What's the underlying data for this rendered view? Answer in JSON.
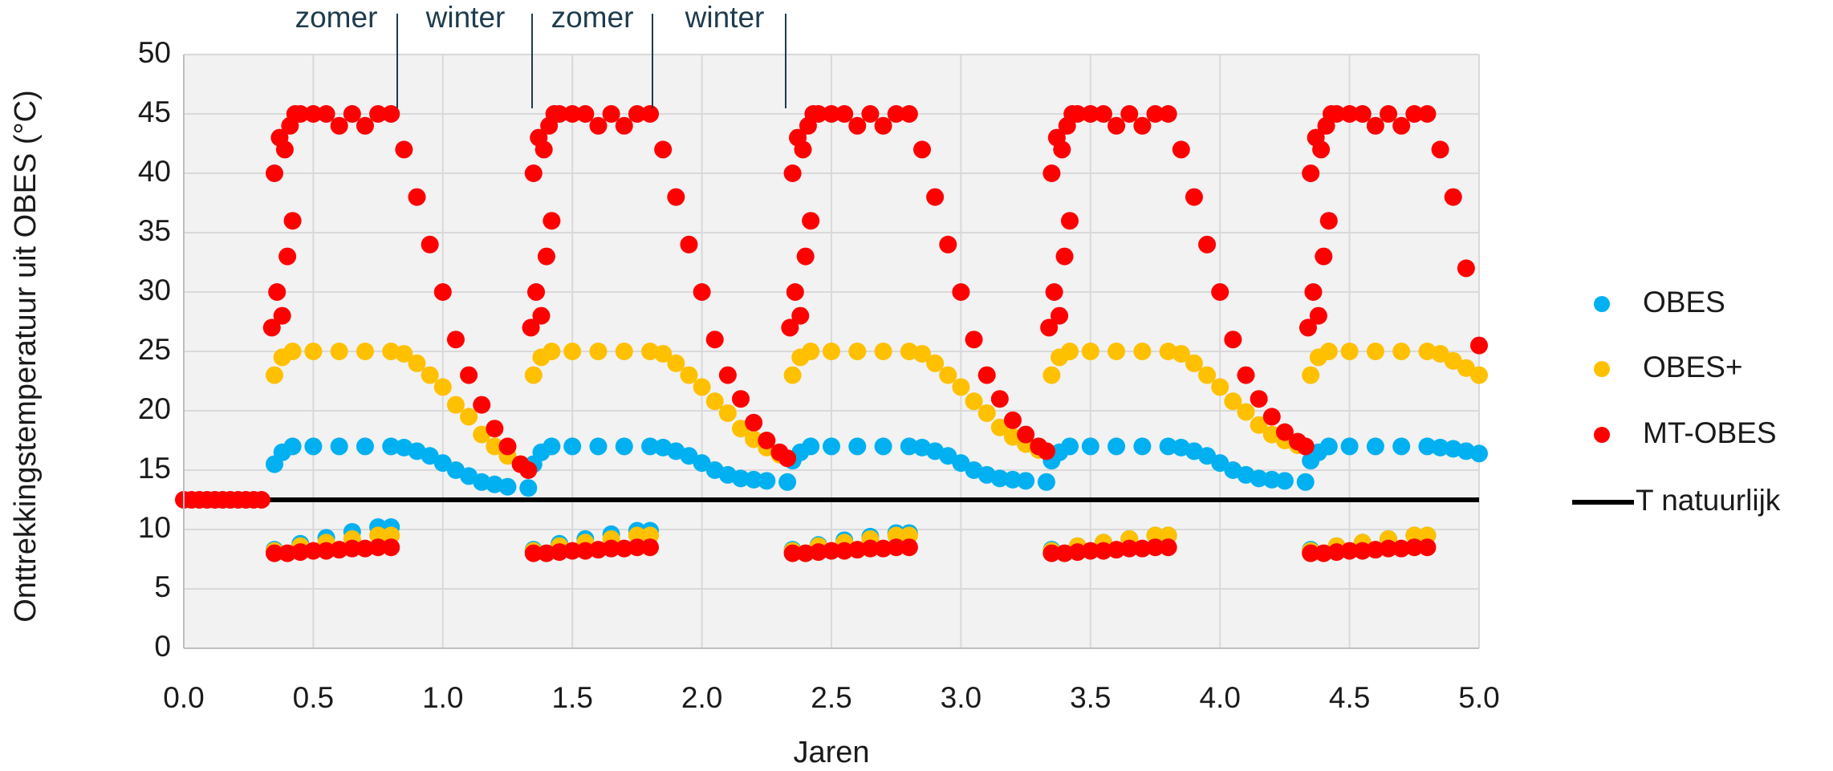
{
  "chart_data": {
    "type": "scatter",
    "xlabel": "Jaren",
    "ylabel": "Onttrekkingstemperatuur uit OBES (°C)",
    "annotations": [
      "zomer",
      "winter",
      "zomer",
      "winter"
    ],
    "xlim": [
      0,
      5
    ],
    "ylim": [
      0,
      50
    ],
    "xticks": [
      {
        "value": 0,
        "label": "0.0"
      },
      0.5,
      {
        "value": 1,
        "label": "1.0"
      },
      1.5,
      {
        "value": 2,
        "label": "2.0"
      },
      2.5,
      {
        "value": 3,
        "label": "3.0"
      },
      3.5,
      {
        "value": 4,
        "label": "4.0"
      },
      4.5,
      {
        "value": 5,
        "label": "5.0"
      }
    ],
    "yticks": [
      0,
      5,
      10,
      15,
      20,
      25,
      30,
      35,
      40,
      45,
      50
    ],
    "grid": true,
    "legend": "right",
    "series": [
      {
        "name": "OBES",
        "color": "#00b0f0",
        "x": [
          0.35,
          0.38,
          0.42,
          0.5,
          0.6,
          0.7,
          0.8,
          0.85,
          0.9,
          0.95,
          1.0,
          1.05,
          1.1,
          1.15,
          1.2,
          1.25,
          1.33,
          0.35,
          0.45,
          0.55,
          0.65,
          0.75,
          0.8,
          1.35,
          1.38,
          1.42,
          1.5,
          1.6,
          1.7,
          1.8,
          1.85,
          1.9,
          1.95,
          2.0,
          2.05,
          2.1,
          2.15,
          2.2,
          2.25,
          2.33,
          1.35,
          1.45,
          1.55,
          1.65,
          1.75,
          1.8,
          2.35,
          2.38,
          2.42,
          2.5,
          2.6,
          2.7,
          2.8,
          2.85,
          2.9,
          2.95,
          3.0,
          3.05,
          3.1,
          3.15,
          3.2,
          3.25,
          3.33,
          2.35,
          2.45,
          2.55,
          2.65,
          2.75,
          2.8,
          3.35,
          3.38,
          3.42,
          3.5,
          3.6,
          3.7,
          3.8,
          3.85,
          3.9,
          3.95,
          4.0,
          4.05,
          4.1,
          4.15,
          4.2,
          4.25,
          4.33,
          3.35,
          3.45,
          3.55,
          3.65,
          3.75,
          3.8,
          4.35,
          4.38,
          4.42,
          4.5,
          4.6,
          4.7,
          4.8,
          4.85,
          4.9,
          4.95,
          5.0,
          4.35,
          4.45,
          4.55,
          4.65,
          4.75,
          4.8
        ],
        "values": [
          15.5,
          16.5,
          17,
          17,
          17,
          17,
          17,
          16.9,
          16.6,
          16.2,
          15.6,
          15,
          14.5,
          14,
          13.8,
          13.6,
          13.5,
          8.3,
          8.8,
          9.3,
          9.8,
          10.2,
          10.2,
          15.5,
          16.5,
          17,
          17,
          17,
          17,
          17,
          16.9,
          16.6,
          16.2,
          15.6,
          15,
          14.6,
          14.3,
          14.2,
          14.1,
          14,
          8.3,
          8.8,
          9.2,
          9.6,
          9.9,
          9.9,
          15.8,
          16.5,
          17,
          17,
          17,
          17,
          17,
          16.9,
          16.6,
          16.2,
          15.6,
          15,
          14.6,
          14.3,
          14.2,
          14.1,
          14,
          8.3,
          8.7,
          9.1,
          9.4,
          9.7,
          9.7,
          15.8,
          16.5,
          17,
          17,
          17,
          17,
          17,
          16.9,
          16.6,
          16.2,
          15.6,
          15,
          14.6,
          14.3,
          14.2,
          14.1,
          14,
          8.3,
          8.6,
          8.9,
          9.2,
          9.5,
          9.5,
          15.8,
          16.5,
          17,
          17,
          17,
          17,
          17,
          16.9,
          16.8,
          16.6,
          16.4,
          8.3,
          8.6,
          8.9,
          9.2,
          9.5,
          9.5
        ]
      },
      {
        "name": "OBES+",
        "color": "#ffc000",
        "x": [
          0.35,
          0.38,
          0.42,
          0.5,
          0.6,
          0.7,
          0.8,
          0.85,
          0.9,
          0.95,
          1.0,
          1.05,
          1.1,
          1.15,
          1.2,
          1.25,
          1.3,
          0.35,
          0.45,
          0.55,
          0.65,
          0.75,
          0.8,
          1.35,
          1.38,
          1.42,
          1.5,
          1.6,
          1.7,
          1.8,
          1.85,
          1.9,
          1.95,
          2.0,
          2.05,
          2.1,
          2.15,
          2.2,
          2.25,
          2.3,
          1.35,
          1.45,
          1.55,
          1.65,
          1.75,
          1.8,
          2.35,
          2.38,
          2.42,
          2.5,
          2.6,
          2.7,
          2.8,
          2.85,
          2.9,
          2.95,
          3.0,
          3.05,
          3.1,
          3.15,
          3.2,
          3.25,
          3.3,
          2.35,
          2.45,
          2.55,
          2.65,
          2.75,
          2.8,
          3.35,
          3.38,
          3.42,
          3.5,
          3.6,
          3.7,
          3.8,
          3.85,
          3.9,
          3.95,
          4.0,
          4.05,
          4.1,
          4.15,
          4.2,
          4.25,
          4.3,
          3.35,
          3.45,
          3.55,
          3.65,
          3.75,
          3.8,
          4.35,
          4.38,
          4.42,
          4.5,
          4.6,
          4.7,
          4.8,
          4.85,
          4.9,
          4.95,
          5.0,
          4.35,
          4.45,
          4.55,
          4.65,
          4.75,
          4.8
        ],
        "values": [
          23,
          24.5,
          25,
          25,
          25,
          25,
          25,
          24.8,
          24,
          23,
          22,
          20.5,
          19.5,
          18,
          17,
          16.2,
          15.5,
          8.2,
          8.6,
          8.9,
          9.2,
          9.5,
          9.5,
          23,
          24.5,
          25,
          25,
          25,
          25,
          25,
          24.8,
          24,
          23,
          22,
          20.8,
          19.8,
          18.5,
          17.6,
          16.9,
          16.3,
          8.2,
          8.6,
          8.9,
          9.2,
          9.5,
          9.5,
          23,
          24.5,
          25,
          25,
          25,
          25,
          25,
          24.8,
          24,
          23,
          22,
          20.8,
          19.8,
          18.6,
          17.8,
          17.2,
          16.7,
          8.2,
          8.6,
          8.9,
          9.2,
          9.5,
          9.5,
          23,
          24.5,
          25,
          25,
          25,
          25,
          25,
          24.8,
          24,
          23,
          22,
          20.8,
          19.9,
          18.8,
          18,
          17.5,
          17.1,
          8.2,
          8.6,
          8.9,
          9.2,
          9.5,
          9.5,
          23,
          24.5,
          25,
          25,
          25,
          25,
          25,
          24.8,
          24.2,
          23.6,
          23,
          8.2,
          8.6,
          8.9,
          9.2,
          9.5,
          9.5
        ]
      },
      {
        "name": "MT-OBES",
        "color": "#ff0000",
        "x": [
          0,
          0.03,
          0.06,
          0.09,
          0.12,
          0.15,
          0.18,
          0.21,
          0.24,
          0.27,
          0.3,
          0.34,
          0.35,
          0.36,
          0.37,
          0.38,
          0.39,
          0.4,
          0.41,
          0.42,
          0.43,
          0.45,
          0.5,
          0.55,
          0.6,
          0.65,
          0.7,
          0.75,
          0.8,
          0.85,
          0.9,
          0.95,
          1.0,
          1.05,
          1.1,
          1.15,
          1.2,
          1.25,
          1.3,
          1.33,
          0.35,
          0.4,
          0.45,
          0.5,
          0.55,
          0.6,
          0.65,
          0.7,
          0.75,
          0.8,
          1.34,
          1.35,
          1.36,
          1.37,
          1.38,
          1.39,
          1.4,
          1.41,
          1.42,
          1.43,
          1.45,
          1.5,
          1.55,
          1.6,
          1.65,
          1.7,
          1.75,
          1.8,
          1.85,
          1.9,
          1.95,
          2.0,
          2.05,
          2.1,
          2.15,
          2.2,
          2.25,
          2.3,
          2.33,
          1.35,
          1.4,
          1.45,
          1.5,
          1.55,
          1.6,
          1.65,
          1.7,
          1.75,
          1.8,
          2.34,
          2.35,
          2.36,
          2.37,
          2.38,
          2.39,
          2.4,
          2.41,
          2.42,
          2.43,
          2.45,
          2.5,
          2.55,
          2.6,
          2.65,
          2.7,
          2.75,
          2.8,
          2.85,
          2.9,
          2.95,
          3.0,
          3.05,
          3.1,
          3.15,
          3.2,
          3.25,
          3.3,
          3.33,
          2.35,
          2.4,
          2.45,
          2.5,
          2.55,
          2.6,
          2.65,
          2.7,
          2.75,
          2.8,
          3.34,
          3.35,
          3.36,
          3.37,
          3.38,
          3.39,
          3.4,
          3.41,
          3.42,
          3.43,
          3.45,
          3.5,
          3.55,
          3.6,
          3.65,
          3.7,
          3.75,
          3.8,
          3.85,
          3.9,
          3.95,
          4.0,
          4.05,
          4.1,
          4.15,
          4.2,
          4.25,
          4.3,
          4.33,
          3.35,
          3.4,
          3.45,
          3.5,
          3.55,
          3.6,
          3.65,
          3.7,
          3.75,
          3.8,
          4.34,
          4.35,
          4.36,
          4.37,
          4.38,
          4.39,
          4.4,
          4.41,
          4.42,
          4.43,
          4.45,
          4.5,
          4.55,
          4.6,
          4.65,
          4.7,
          4.75,
          4.8,
          4.85,
          4.9,
          4.95,
          5.0,
          4.35,
          4.4,
          4.45,
          4.5,
          4.55,
          4.6,
          4.65,
          4.7,
          4.75,
          4.8
        ],
        "values": [
          12.5,
          12.5,
          12.5,
          12.5,
          12.5,
          12.5,
          12.5,
          12.5,
          12.5,
          12.5,
          12.5,
          27,
          40,
          30,
          43,
          28,
          42,
          33,
          44,
          36,
          45,
          45,
          45,
          45,
          44,
          45,
          44,
          45,
          45,
          42,
          38,
          34,
          30,
          26,
          23,
          20.5,
          18.5,
          17,
          15.5,
          15,
          8,
          8,
          8.1,
          8.2,
          8.2,
          8.3,
          8.4,
          8.4,
          8.5,
          8.5,
          27,
          40,
          30,
          43,
          28,
          42,
          33,
          44,
          36,
          45,
          45,
          45,
          45,
          44,
          45,
          44,
          45,
          45,
          42,
          38,
          34,
          30,
          26,
          23,
          21,
          19,
          17.5,
          16.5,
          16,
          8,
          8,
          8.1,
          8.2,
          8.2,
          8.3,
          8.4,
          8.4,
          8.5,
          8.5,
          27,
          40,
          30,
          43,
          28,
          42,
          33,
          44,
          36,
          45,
          45,
          45,
          45,
          44,
          45,
          44,
          45,
          45,
          42,
          38,
          34,
          30,
          26,
          23,
          21,
          19.2,
          18,
          17,
          16.6,
          8,
          8,
          8.1,
          8.2,
          8.2,
          8.3,
          8.4,
          8.4,
          8.5,
          8.5,
          27,
          40,
          30,
          43,
          28,
          42,
          33,
          44,
          36,
          45,
          45,
          45,
          45,
          44,
          45,
          44,
          45,
          45,
          42,
          38,
          34,
          30,
          26,
          23,
          21,
          19.5,
          18.2,
          17.4,
          17,
          8,
          8,
          8.1,
          8.2,
          8.2,
          8.3,
          8.4,
          8.4,
          8.5,
          8.5,
          27,
          40,
          30,
          43,
          28,
          42,
          33,
          44,
          36,
          45,
          45,
          45,
          45,
          44,
          45,
          44,
          45,
          45,
          42,
          38,
          32,
          25.5,
          8,
          8,
          8.1,
          8.2,
          8.2,
          8.3,
          8.4,
          8.4,
          8.5,
          8.5
        ]
      },
      {
        "name": "T natuurlijk",
        "color": "#000000",
        "type": "line",
        "x": [
          0,
          5
        ],
        "values": [
          12.5,
          12.5
        ]
      }
    ]
  }
}
